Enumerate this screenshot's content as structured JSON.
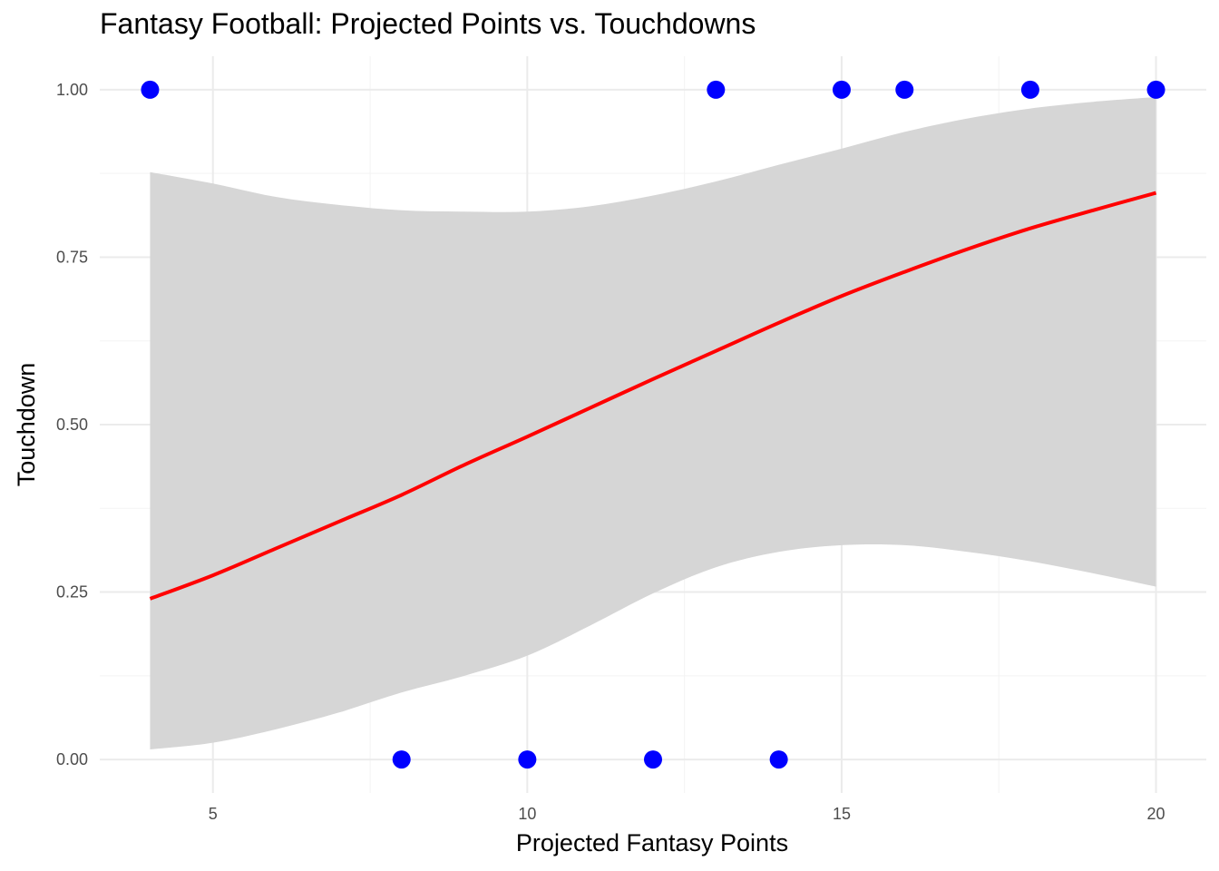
{
  "chart_data": {
    "type": "scatter",
    "title": "Fantasy Football: Projected Points vs. Touchdowns",
    "xlabel": "Projected Fantasy Points",
    "ylabel": "Touchdown",
    "xlim": [
      3.2,
      20.8
    ],
    "ylim": [
      -0.05,
      1.05
    ],
    "x_ticks": [
      5,
      10,
      15,
      20
    ],
    "x_tick_labels": [
      "5",
      "10",
      "15",
      "20"
    ],
    "y_ticks": [
      0,
      0.25,
      0.5,
      0.75,
      1
    ],
    "y_tick_labels": [
      "0.00",
      "0.25",
      "0.50",
      "0.75",
      "1.00"
    ],
    "grid": true,
    "legend": "none",
    "points": {
      "color": "#0000ff",
      "x": [
        4,
        8,
        10,
        12,
        13,
        14,
        15,
        16,
        18,
        20
      ],
      "y": [
        1,
        0,
        0,
        0,
        1,
        0,
        1,
        1,
        1,
        1
      ]
    },
    "fit_line": {
      "color": "#ff0000",
      "x": [
        4,
        5,
        6,
        7,
        8,
        9,
        10,
        11,
        12,
        13,
        14,
        15,
        16,
        17,
        18,
        19,
        20
      ],
      "y": [
        0.24,
        0.275,
        0.315,
        0.355,
        0.395,
        0.44,
        0.482,
        0.525,
        0.568,
        0.61,
        0.652,
        0.692,
        0.728,
        0.762,
        0.793,
        0.82,
        0.846
      ]
    },
    "confidence_band": {
      "color": "#d6d6d6",
      "x": [
        4,
        5,
        6,
        7,
        8,
        9,
        10,
        11,
        12,
        13,
        14,
        15,
        16,
        17,
        18,
        19,
        20
      ],
      "lower": [
        0.015,
        0.025,
        0.045,
        0.07,
        0.1,
        0.125,
        0.155,
        0.2,
        0.248,
        0.287,
        0.31,
        0.32,
        0.32,
        0.31,
        0.296,
        0.278,
        0.258
      ],
      "upper": [
        0.877,
        0.86,
        0.84,
        0.828,
        0.82,
        0.818,
        0.818,
        0.826,
        0.842,
        0.863,
        0.888,
        0.912,
        0.937,
        0.957,
        0.972,
        0.982,
        0.989
      ]
    }
  }
}
